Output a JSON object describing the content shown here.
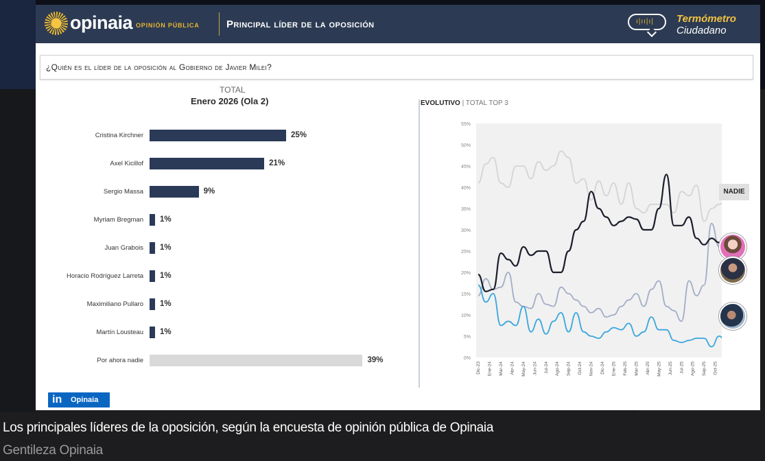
{
  "header": {
    "logo_text": "opinaia",
    "logo_subtitle": "OPINIÓN PÚBLICA",
    "title": "Principal líder de la oposición",
    "badge_line1": "Termómetro",
    "badge_line2": "Ciudadano"
  },
  "question": "¿Quién es el líder de la oposición al Gobierno de Javier Milei?",
  "chart_data": [
    {
      "type": "bar",
      "title": "TOTAL",
      "subtitle": "Enero 2026 (Ola 2)",
      "categories": [
        "Cristina Kirchner",
        "Axel Kicillof",
        "Sergio Massa",
        "Myriam Bregman",
        "Juan Grabois",
        "Horacio Rodríguez Larreta",
        "Maximiliano Pullaro",
        "Martín Lousteau",
        "Por ahora nadie"
      ],
      "values": [
        25,
        21,
        9,
        1,
        1,
        1,
        1,
        1,
        39
      ],
      "value_labels": [
        "25%",
        "21%",
        "9%",
        "1%",
        "1%",
        "1%",
        "1%",
        "1%",
        "39%"
      ],
      "colors": {
        "candidate": "#2a3a57",
        "nadie": "#d9d9d9"
      }
    },
    {
      "type": "line",
      "title": "EVOLUTIVO",
      "subtitle": "TOTAL TOP 3",
      "ylim": [
        0,
        55
      ],
      "yticks": [
        "0%",
        "5%",
        "10%",
        "15%",
        "20%",
        "25%",
        "30%",
        "35%",
        "40%",
        "45%",
        "50%",
        "55%"
      ],
      "xticks": [
        "Dic-23",
        "Ene-24",
        "Mar-24",
        "Abr-24",
        "May-24",
        "Jun-24",
        "Jul-24",
        "Ago-24",
        "Sep-24",
        "Oct-24",
        "Nov-24",
        "Dic-24",
        "Ene-25",
        "Feb-25",
        "Mar-25",
        "Abr-25",
        "May-25",
        "Jun-25",
        "Jul-25",
        "Ago-25",
        "Sep-25",
        "Oct-25",
        "Nov-25",
        "Dic-25",
        "Ene-26"
      ],
      "grid": false,
      "series": [
        {
          "name": "NADIE",
          "color": "#d4d4d4",
          "values": [
            41,
            45.5,
            47,
            41,
            40,
            45,
            45,
            42,
            46,
            44,
            45,
            48.5,
            47,
            41,
            42,
            37,
            41.5,
            38,
            41,
            36,
            41,
            35,
            34,
            36,
            36,
            36,
            34,
            39,
            38,
            40.5,
            32,
            35,
            36,
            37,
            35,
            39.5,
            39
          ]
        },
        {
          "color": "#a3adc8",
          "values": [
            14.5,
            18.5,
            16,
            16.5,
            20,
            13,
            12,
            11.5,
            15,
            12.5,
            12,
            16.5,
            15,
            13.5,
            12,
            10.5,
            11.5,
            9.5,
            10,
            12,
            13.5,
            15,
            12,
            16,
            18,
            12,
            11,
            8.5,
            18,
            14.5,
            17,
            31.5,
            26,
            26,
            22,
            24,
            21
          ]
        },
        {
          "color": "#1b1e2b",
          "values": [
            19.5,
            15.5,
            16,
            24.5,
            23,
            21.5,
            26,
            24,
            25,
            25,
            20,
            20,
            25,
            30,
            32,
            39,
            35,
            33,
            31,
            32,
            33,
            32.5,
            30,
            30,
            35,
            43,
            31,
            31,
            33,
            28,
            26.5,
            28,
            27,
            28,
            28.5,
            25.5,
            25
          ]
        },
        {
          "color": "#39a6dd",
          "values": [
            17,
            13,
            15,
            7.5,
            8.5,
            7.5,
            12,
            6,
            9,
            5.5,
            8.5,
            10.5,
            6,
            10.5,
            6,
            5,
            4.5,
            6,
            7,
            6.5,
            8,
            5,
            6,
            9.5,
            6.5,
            6.5,
            4,
            3.5,
            4,
            4.5,
            4.5,
            2.5,
            5,
            3.5,
            6,
            3,
            9
          ]
        }
      ]
    }
  ],
  "linkedin": {
    "icon": "in",
    "label": "Opinaia"
  },
  "caption": "Los principales líderes de la oposición, según la encuesta de opinión pública de Opinaia",
  "credit": "Gentileza Opinaia"
}
